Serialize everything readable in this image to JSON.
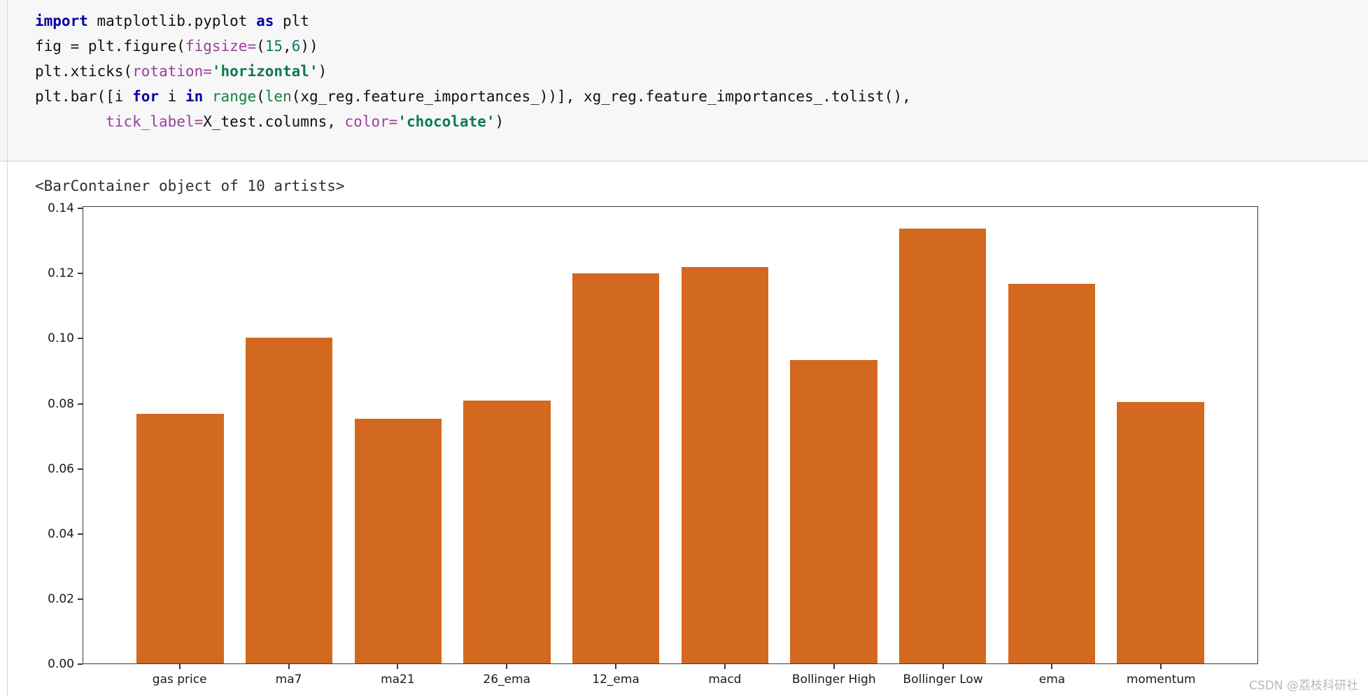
{
  "code_cell": {
    "language": "python",
    "lines": [
      [
        [
          "kw",
          "import"
        ],
        [
          "pl",
          " matplotlib.pyplot "
        ],
        [
          "kw",
          "as"
        ],
        [
          "pl",
          " plt"
        ]
      ],
      [
        [
          "pl",
          "fig = plt.figure("
        ],
        [
          "param",
          "figsize="
        ],
        [
          "pl",
          "("
        ],
        [
          "num",
          "15"
        ],
        [
          "pl",
          ","
        ],
        [
          "num",
          "6"
        ],
        [
          "pl",
          "))"
        ]
      ],
      [
        [
          "pl",
          "plt.xticks("
        ],
        [
          "param",
          "rotation="
        ],
        [
          "str",
          "'horizontal'"
        ],
        [
          "pl",
          ")"
        ]
      ],
      [
        [
          "pl",
          "plt.bar([i "
        ],
        [
          "kw",
          "for"
        ],
        [
          "pl",
          " i "
        ],
        [
          "kw",
          "in"
        ],
        [
          "pl",
          " "
        ],
        [
          "builtin",
          "range"
        ],
        [
          "pl",
          "("
        ],
        [
          "builtin",
          "len"
        ],
        [
          "pl",
          "(xg_reg.feature_importances_))], xg_reg.feature_importances_.tolist(),"
        ]
      ],
      [
        [
          "pl",
          "        "
        ],
        [
          "param",
          "tick_label="
        ],
        [
          "pl",
          "X_test.columns, "
        ],
        [
          "param",
          "color="
        ],
        [
          "str",
          "'chocolate'"
        ],
        [
          "pl",
          ")"
        ]
      ]
    ]
  },
  "output": {
    "repr": "<BarContainer object of 10 artists>"
  },
  "chart_data": {
    "type": "bar",
    "title": "",
    "xlabel": "",
    "ylabel": "",
    "categories": [
      "gas price",
      "ma7",
      "ma21",
      "26_ema",
      "12_ema",
      "macd",
      "Bollinger High",
      "Bollinger Low",
      "ema",
      "momentum"
    ],
    "values": [
      0.077,
      0.1005,
      0.0755,
      0.081,
      0.1202,
      0.1222,
      0.0935,
      0.134,
      0.117,
      0.0805
    ],
    "bar_color": "#d2691e",
    "bar_color_name": "chocolate",
    "ylim": [
      0,
      0.1407
    ],
    "ytick_labels": [
      "0.00",
      "0.02",
      "0.04",
      "0.06",
      "0.08",
      "0.10",
      "0.12",
      "0.14"
    ],
    "grid": false,
    "legend": false
  },
  "watermark": {
    "text": "CSDN @荔枝科研社"
  }
}
